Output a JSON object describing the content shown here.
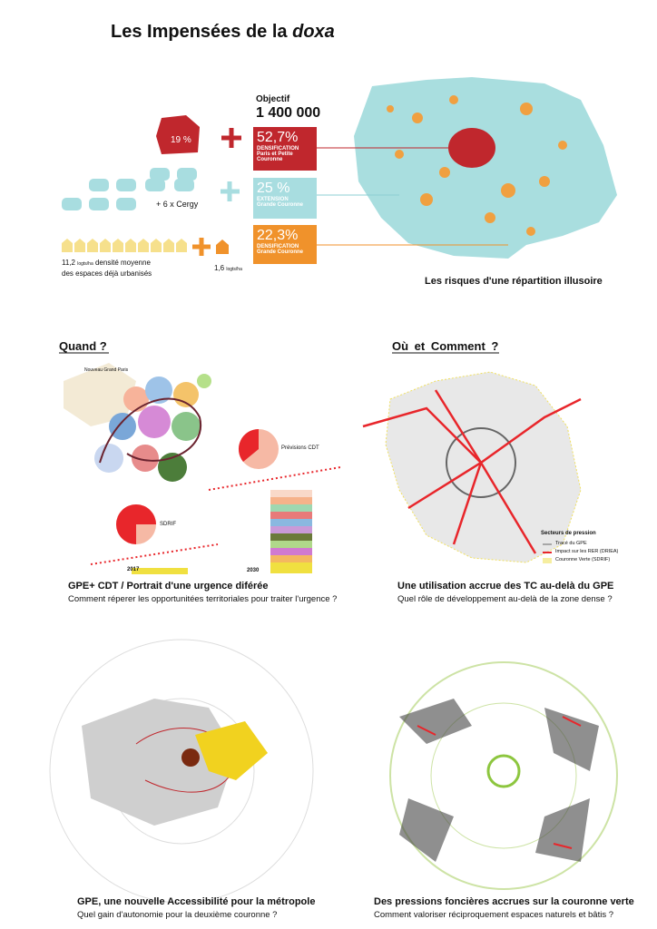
{
  "title": {
    "text": "Les Impensées de la",
    "emphasis": "doxa"
  },
  "left_panel": {
    "paris_share": "19 %",
    "cergy": "+ 6 x Cergy",
    "density_value": "11,2",
    "density_unit": "logts/ha",
    "density_text": "densité moyenne",
    "density_text2": "des espaces déjà urbanisés",
    "low_density_value": "1,6",
    "low_density_unit": "logts/ha"
  },
  "objective": {
    "label": "Objectif",
    "value": "1 400 000"
  },
  "boxes": [
    {
      "percent": "52,7%",
      "kind": "DENSIFICATION",
      "area": "Paris et Petite Couronne"
    },
    {
      "percent": "25 %",
      "kind": "EXTENSION",
      "area": "Grande Couronne"
    },
    {
      "percent": "22,3%",
      "kind": "DENSIFICATION",
      "area": "Grande Couronne"
    }
  ],
  "map_caption": "Les risques d'une répartition illusoire",
  "sections": {
    "when": "Quand ?",
    "where": "Où et Comment ?"
  },
  "when_diagram": {
    "legend_title": "Nouveau Grand Paris",
    "forecast": "Prévisions CDT",
    "sdrif": "SDRIF",
    "start_year": "2017",
    "end_year": "2030"
  },
  "where_legend": {
    "title": "Secteurs de pression",
    "items": [
      "Tracé du GPE",
      "Impact sur les RER (DRIEA)",
      "Couronne Verte (SDRIF)"
    ]
  },
  "panels": [
    {
      "title": "GPE+ CDT / Portrait d'une urgence diférée",
      "question": "Comment réperer les opportunitées territoriales pour traiter l'urgence ?"
    },
    {
      "title": "Une utilisation accrue  des TC au-delà du GPE",
      "question": "Quel  rôle de développement au-delà de la zone dense ?"
    },
    {
      "title": "GPE, une nouvelle Accessibilité pour la métropole",
      "question": "Quel gain d'autonomie pour la deuxième couronne ?"
    },
    {
      "title": "Des pressions foncières accrues sur la couronne verte",
      "question": "Comment valoriser réciproquement espaces naturels et bâtis ?"
    }
  ]
}
